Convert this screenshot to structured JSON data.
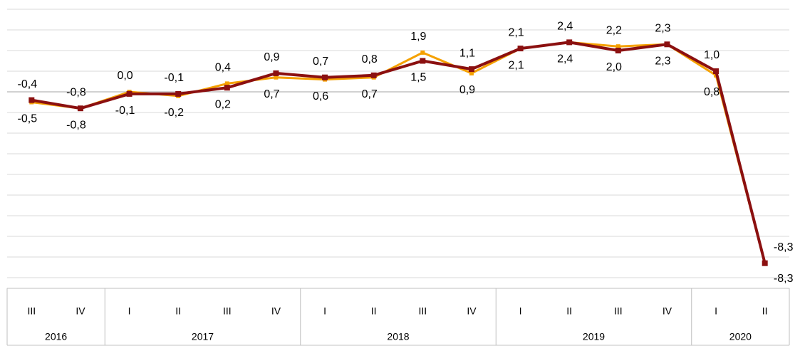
{
  "chart_data": {
    "type": "line",
    "category_groups": [
      {
        "label": "2016",
        "categories": [
          "III",
          "IV"
        ]
      },
      {
        "label": "2017",
        "categories": [
          "I",
          "II",
          "III",
          "IV"
        ]
      },
      {
        "label": "2018",
        "categories": [
          "I",
          "II",
          "III",
          "IV"
        ]
      },
      {
        "label": "2019",
        "categories": [
          "I",
          "II",
          "III",
          "IV"
        ]
      },
      {
        "label": "2020",
        "categories": [
          "I",
          "II"
        ]
      }
    ],
    "series": [
      {
        "color": "#f5a100",
        "values": [
          -0.5,
          -0.8,
          0.0,
          -0.2,
          0.4,
          0.7,
          0.6,
          0.7,
          1.9,
          0.9,
          2.1,
          2.4,
          2.2,
          2.3,
          0.8,
          -8.3
        ],
        "value_labels": [
          "-0,5",
          "-0,8",
          "0,0",
          "-0,2",
          "0,4",
          "0,7",
          "0,6",
          "0,7",
          "1,9",
          "0,9",
          "2,1",
          "2,4",
          "2,2",
          "2,3",
          "0,8",
          "-8,3"
        ]
      },
      {
        "color": "#8b1010",
        "values": [
          -0.4,
          -0.8,
          -0.1,
          -0.1,
          0.2,
          0.9,
          0.7,
          0.8,
          1.5,
          1.1,
          2.1,
          2.4,
          2.0,
          2.3,
          1.0,
          -8.3
        ],
        "value_labels": [
          "-0,4",
          "-0,8",
          "-0,1",
          "-0,1",
          "0,2",
          "0,9",
          "0,7",
          "0,8",
          "1,5",
          "1,1",
          "2,1",
          "2,4",
          "2,0",
          "2,3",
          "1,0",
          "-8,3"
        ]
      }
    ],
    "ylim": [
      -9,
      4
    ],
    "yticks": [
      -9,
      -8,
      -7,
      -6,
      -5,
      -4,
      -3,
      -2,
      -1,
      0,
      1,
      2,
      3,
      4
    ],
    "grid": true
  }
}
